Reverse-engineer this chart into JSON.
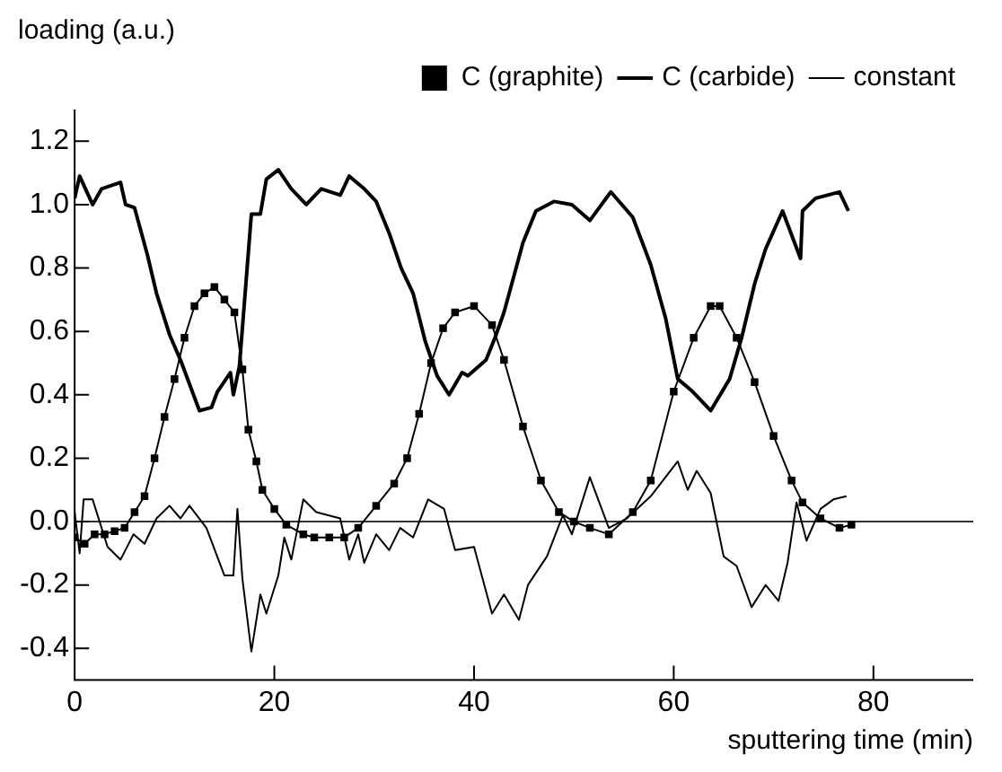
{
  "chart_data": {
    "type": "line",
    "xlabel": "sputtering time (min)",
    "ylabel": "loading (a.u.)",
    "xlim": [
      0,
      90
    ],
    "xticks": [
      0,
      20,
      40,
      60,
      80
    ],
    "ylim": [
      -0.5,
      1.3
    ],
    "yticks": [
      -0.4,
      -0.2,
      {
        "value": 0.0,
        "label": "0.0"
      },
      0.2,
      0.4,
      0.6,
      0.8,
      {
        "value": 1.0,
        "label": "1.0"
      },
      1.2
    ],
    "grid": false,
    "legend": "top",
    "line_style": "solid",
    "series": [
      {
        "name": "C (graphite)",
        "color": "#000000",
        "marker": "square",
        "x": [
          0,
          1,
          2,
          3,
          4,
          5,
          6,
          7,
          8,
          9,
          10,
          11,
          12,
          13,
          14,
          15,
          16,
          16.8,
          17.4,
          18.2,
          18.8,
          20,
          21.2,
          22.9,
          24,
          25.5,
          27,
          28.4,
          30.2,
          32,
          33.3,
          34.5,
          35.7,
          36.9,
          38.1,
          40,
          41.8,
          43,
          44.9,
          46.7,
          48.5,
          50,
          51.6,
          53.5,
          55.9,
          57.7,
          60,
          62,
          63.7,
          64.6,
          66.3,
          68.1,
          70,
          71.8,
          72.9,
          74.7,
          76.6,
          77.8
        ],
        "values": [
          -0.05,
          -0.07,
          -0.04,
          -0.04,
          -0.03,
          -0.02,
          0.03,
          0.08,
          0.2,
          0.33,
          0.45,
          0.58,
          0.68,
          0.72,
          0.74,
          0.7,
          0.66,
          0.48,
          0.29,
          0.19,
          0.1,
          0.04,
          -0.01,
          -0.04,
          -0.05,
          -0.05,
          -0.05,
          -0.02,
          0.05,
          0.12,
          0.2,
          0.34,
          0.5,
          0.61,
          0.66,
          0.68,
          0.62,
          0.51,
          0.3,
          0.13,
          0.03,
          0.0,
          -0.02,
          -0.04,
          0.03,
          0.13,
          0.41,
          0.58,
          0.68,
          0.68,
          0.58,
          0.44,
          0.27,
          0.13,
          0.06,
          0.01,
          -0.02,
          -0.01
        ]
      },
      {
        "name": "C (carbide)",
        "color": "#000000",
        "x": [
          0,
          0.5,
          1.8,
          2.7,
          4.6,
          5.1,
          6,
          7.3,
          8.2,
          9.5,
          10.6,
          11.9,
          12.5,
          13.7,
          14.3,
          15.6,
          15.9,
          16.5,
          17.7,
          18.6,
          19.2,
          20.4,
          21.7,
          23.2,
          24.7,
          26.6,
          27.5,
          29,
          30.2,
          31.5,
          32.7,
          33.9,
          35.1,
          36.3,
          37.5,
          38.8,
          39.4,
          41.2,
          42.1,
          43,
          44.3,
          44.9,
          46.2,
          48,
          49.8,
          51.6,
          53.7,
          55.9,
          57.7,
          59.2,
          60.4,
          61.9,
          63.7,
          65.6,
          66.8,
          68.1,
          69.2,
          70.9,
          72.7,
          72.9,
          74.2,
          76.6,
          77.5
        ],
        "values": [
          1.02,
          1.09,
          1.0,
          1.05,
          1.07,
          1.0,
          0.99,
          0.84,
          0.72,
          0.59,
          0.51,
          0.4,
          0.35,
          0.36,
          0.41,
          0.47,
          0.4,
          0.49,
          0.97,
          0.97,
          1.08,
          1.11,
          1.05,
          1.0,
          1.05,
          1.03,
          1.09,
          1.05,
          1.01,
          0.91,
          0.8,
          0.72,
          0.57,
          0.46,
          0.4,
          0.47,
          0.46,
          0.51,
          0.58,
          0.66,
          0.81,
          0.88,
          0.98,
          1.01,
          1.0,
          0.95,
          1.04,
          0.96,
          0.81,
          0.64,
          0.45,
          0.41,
          0.35,
          0.45,
          0.58,
          0.75,
          0.86,
          0.98,
          0.83,
          0.98,
          1.02,
          1.04,
          0.98
        ]
      },
      {
        "name": "constant",
        "color": "#000000",
        "x": [
          0,
          0.5,
          0.9,
          1.8,
          3.3,
          4.6,
          5.9,
          7,
          8.2,
          9.5,
          10.6,
          11.5,
          13.2,
          15,
          15.9,
          16.3,
          16.8,
          17.7,
          18.6,
          19.2,
          20.4,
          21,
          21.7,
          22.9,
          24.2,
          26.6,
          27.5,
          28.4,
          29,
          30.2,
          31.5,
          32.6,
          33.9,
          35.4,
          37,
          38.1,
          40,
          41.8,
          43,
          44.5,
          45.4,
          47.3,
          48.9,
          49.8,
          51.6,
          53.5,
          55.3,
          57.7,
          60.4,
          61.4,
          62.3,
          63.7,
          65,
          66.3,
          67.8,
          69.2,
          70.5,
          71.4,
          72.3,
          73.3,
          74.7,
          76,
          77.3
        ],
        "values": [
          0.03,
          -0.1,
          0.07,
          0.07,
          -0.08,
          -0.12,
          -0.04,
          -0.07,
          0.01,
          0.05,
          0.01,
          0.05,
          -0.02,
          -0.17,
          -0.17,
          0.04,
          -0.18,
          -0.41,
          -0.23,
          -0.29,
          -0.17,
          -0.05,
          -0.12,
          0.07,
          0.03,
          0.01,
          -0.12,
          -0.04,
          -0.13,
          -0.04,
          -0.09,
          -0.02,
          -0.05,
          0.07,
          0.04,
          -0.09,
          -0.08,
          -0.29,
          -0.23,
          -0.31,
          -0.2,
          -0.11,
          0.02,
          -0.04,
          0.14,
          -0.02,
          0.01,
          0.08,
          0.19,
          0.1,
          0.16,
          0.09,
          -0.11,
          -0.14,
          -0.27,
          -0.2,
          -0.25,
          -0.13,
          0.06,
          -0.06,
          0.04,
          0.07,
          0.08
        ]
      }
    ],
    "ref_lines": [
      {
        "axis": "y",
        "value": 0,
        "color": "#333333"
      }
    ]
  }
}
